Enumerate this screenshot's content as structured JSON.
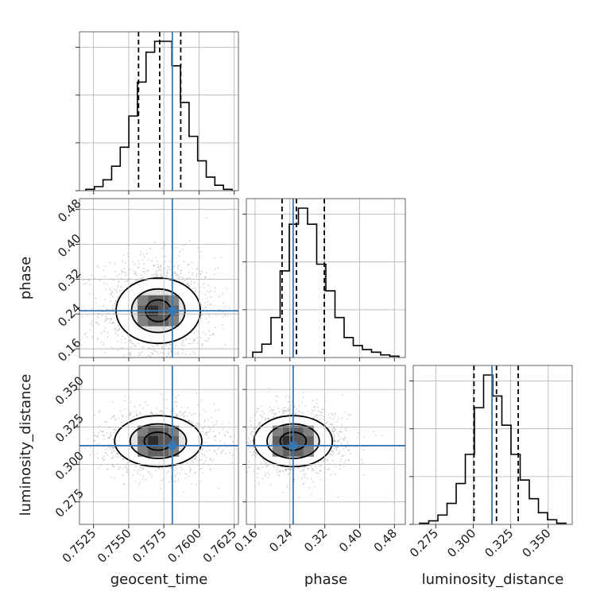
{
  "chart_data": {
    "type": "corner",
    "grid": true,
    "colors": {
      "truth": "#3877b5",
      "line": "#000000",
      "grid": "#b0b0b0",
      "samples": "#9a9a9a"
    },
    "parameters": [
      {
        "name": "geocent_time",
        "label": "geocent_time",
        "range": [
          0.7515,
          0.7628
        ],
        "ticks": [
          "0.7525",
          "0.7550",
          "0.7575",
          "0.7600",
          "0.7625"
        ],
        "truth": 0.7581,
        "quantiles": [
          0.7557,
          0.7572,
          0.7587
        ]
      },
      {
        "name": "phase",
        "label": "phase",
        "range": [
          0.14,
          0.505
        ],
        "ticks": [
          "0.16",
          "0.24",
          "0.32",
          "0.40",
          "0.48"
        ],
        "truth": 0.2475,
        "quantiles": [
          0.222,
          0.255,
          0.319
        ]
      },
      {
        "name": "luminosity_distance",
        "label": "luminosity_distance",
        "range": [
          0.26,
          0.366
        ],
        "ticks": [
          "0.275",
          "0.300",
          "0.325",
          "0.350"
        ],
        "truth": 0.3125,
        "quantiles": [
          0.3005,
          0.3155,
          0.33
        ]
      }
    ],
    "histograms": [
      {
        "parameter": "geocent_time",
        "counts": [
          1,
          3,
          8,
          18,
          32,
          55,
          80,
          102,
          110,
          110,
          92,
          65,
          40,
          22,
          10,
          4,
          1
        ]
      },
      {
        "parameter": "phase",
        "counts": [
          4,
          10,
          30,
          65,
          100,
          112,
          100,
          70,
          50,
          30,
          15,
          9,
          6,
          4,
          2,
          1
        ]
      },
      {
        "parameter": "luminosity_distance",
        "counts": [
          1,
          3,
          8,
          18,
          35,
          60,
          100,
          128,
          110,
          85,
          60,
          38,
          22,
          10,
          4,
          1
        ]
      }
    ],
    "posterior_2d": [
      {
        "x": "geocent_time",
        "y": "phase",
        "center": [
          0.7571,
          0.2475
        ],
        "spread": [
          0.0018,
          0.054
        ],
        "contours": [
          {
            "level": "1σ",
            "rx": 0.0009,
            "ry": 0.025
          },
          {
            "level": "2σ",
            "rx": 0.0019,
            "ry": 0.05
          },
          {
            "level": "3σ",
            "rx": 0.003,
            "ry": 0.075
          }
        ]
      },
      {
        "x": "geocent_time",
        "y": "luminosity_distance",
        "center": [
          0.7571,
          0.3155
        ],
        "spread": [
          0.0018,
          0.0095
        ],
        "contours": [
          {
            "level": "1σ",
            "rx": 0.001,
            "ry": 0.006
          },
          {
            "level": "2σ",
            "rx": 0.002,
            "ry": 0.0115
          },
          {
            "level": "3σ",
            "rx": 0.0031,
            "ry": 0.017
          }
        ]
      },
      {
        "x": "phase",
        "y": "luminosity_distance",
        "center": [
          0.2475,
          0.3155
        ],
        "spread": [
          0.054,
          0.0095
        ],
        "contours": [
          {
            "level": "1σ",
            "rx": 0.03,
            "ry": 0.006
          },
          {
            "level": "2σ",
            "rx": 0.06,
            "ry": 0.0115
          },
          {
            "level": "3σ",
            "rx": 0.09,
            "ry": 0.017
          }
        ]
      }
    ],
    "hist_ticks": [
      "",
      "",
      "",
      ""
    ]
  }
}
